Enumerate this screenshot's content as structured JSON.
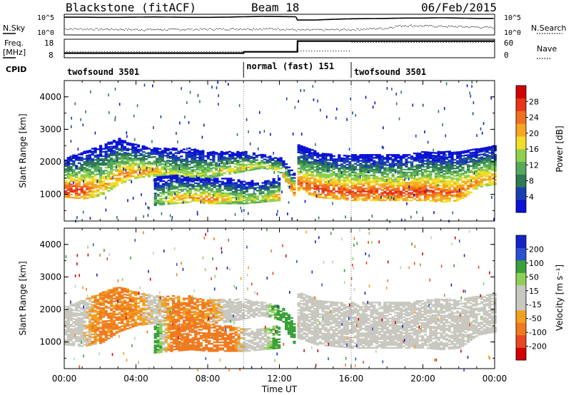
{
  "header": {
    "station": "Blackstone (fitACF)",
    "beam": "Beam 18",
    "date": "06/Feb/2015"
  },
  "strip_labels": {
    "nsky": "N.Sky",
    "nsky_hi": "10^5",
    "nsky_lo": "10^0",
    "nsearch": "N.Search",
    "nsearch_hi": "10^5",
    "nsearch_lo": "10^0",
    "freq_l1": "Freq.",
    "freq_l2": "[MHz]",
    "freq_hi": "18",
    "freq_lo": "8",
    "nave": "Nave",
    "nave_hi": "60",
    "nave_lo": "0",
    "cpid": "CPID"
  },
  "cpid_segments": [
    {
      "label": "twofsound 3501",
      "start_hour": 0,
      "end_hour": 10
    },
    {
      "label": "normal (fast) 151",
      "start_hour": 10,
      "end_hour": 16
    },
    {
      "label": "twofsound 3501",
      "start_hour": 16,
      "end_hour": 24
    }
  ],
  "colors": {
    "power_scale": [
      "#0a12d6",
      "#1a3fb0",
      "#2d7a55",
      "#55a85c",
      "#8fcf4e",
      "#f2dd2a",
      "#f5a623",
      "#f07020",
      "#e83418",
      "#d40000"
    ],
    "velocity_scale": [
      "#1424c8",
      "#2a52d0",
      "#3aa03a",
      "#8fd05a",
      "#c8c8c0",
      "#c8c8c0",
      "#f2a020",
      "#f07a20",
      "#e84820",
      "#d40000"
    ]
  },
  "chart_data": [
    {
      "type": "line",
      "panel": "N.Sky / N.Search",
      "x_range_hours": [
        0,
        24
      ],
      "y_scale": "log",
      "ylim": [
        1,
        100000
      ],
      "series": [
        {
          "name": "N.Sky",
          "x": [
            0,
            1,
            2,
            3,
            4,
            5,
            6,
            7,
            8,
            9,
            10,
            11,
            12,
            12.9,
            13,
            14,
            16,
            17,
            18,
            19,
            20,
            21,
            22,
            23,
            24
          ],
          "values": [
            20000,
            20000,
            18000,
            18000,
            20000,
            22000,
            20000,
            18000,
            18000,
            20000,
            25000,
            30000,
            28000,
            25000,
            4000,
            4000,
            8000,
            9000,
            10000,
            12000,
            12000,
            14000,
            12000,
            10000,
            10000
          ]
        },
        {
          "name": "N.Search",
          "x": [
            0,
            2,
            4,
            6,
            8,
            10,
            12,
            13,
            16,
            18,
            19,
            20,
            22,
            24
          ],
          "values": [
            30,
            25,
            20,
            20,
            25,
            30,
            30,
            15,
            20,
            40,
            200,
            150,
            100,
            60
          ]
        }
      ]
    },
    {
      "type": "line",
      "panel": "Freq / Nave",
      "x_range_hours": [
        0,
        24
      ],
      "series": [
        {
          "name": "Freq. [MHz]",
          "ylim": [
            8,
            18
          ],
          "x": [
            0,
            10,
            10.01,
            13,
            13.01,
            24
          ],
          "values": [
            10.5,
            10.5,
            11.2,
            11.2,
            17,
            17
          ]
        },
        {
          "name": "Nave",
          "ylim": [
            0,
            60
          ],
          "x": [
            0,
            13,
            13.01,
            16,
            16.01,
            24
          ],
          "values": [
            20,
            20,
            22,
            22,
            50,
            50
          ]
        }
      ]
    },
    {
      "type": "heatmap",
      "panel": "Power",
      "xlabel": "",
      "ylabel": "Slant Range [km]",
      "x_range_hours": [
        0,
        24
      ],
      "ylim": [
        180,
        4500
      ],
      "yticks": [
        1000,
        2000,
        3000,
        4000
      ],
      "colorbar": {
        "label": "Power [dB]",
        "ticks": [
          "4",
          "8",
          "12",
          "16",
          "20",
          "24",
          "28"
        ],
        "range": [
          0,
          30
        ]
      },
      "bands": [
        {
          "x": [
            0,
            1,
            2,
            3,
            4,
            5,
            6,
            7,
            8,
            9,
            10,
            11,
            12,
            12.8
          ],
          "bottom_km": [
            900,
            850,
            950,
            1300,
            1500,
            1550,
            1450,
            1400,
            1500,
            1600,
            1700,
            1800,
            1650,
            900
          ],
          "top_km": [
            2100,
            2300,
            2500,
            2700,
            2500,
            2400,
            2400,
            2400,
            2300,
            2300,
            2300,
            2200,
            2100,
            1600
          ],
          "peak_db": [
            28,
            26,
            20,
            22,
            22,
            20,
            16,
            16,
            16,
            18,
            18,
            16,
            18,
            26
          ]
        },
        {
          "x": [
            5,
            6,
            7,
            8,
            9,
            10,
            11,
            12
          ],
          "bottom_km": [
            650,
            700,
            750,
            700,
            700,
            700,
            750,
            800
          ],
          "top_km": [
            1500,
            1600,
            1500,
            1500,
            1500,
            1400,
            1400,
            1500
          ],
          "peak_db": [
            12,
            20,
            20,
            24,
            18,
            16,
            16,
            22
          ]
        },
        {
          "x": [
            13,
            14,
            15,
            16,
            17,
            18,
            19,
            20,
            21,
            22,
            23,
            24
          ],
          "bottom_km": [
            1100,
            900,
            850,
            800,
            800,
            800,
            800,
            800,
            750,
            800,
            1200,
            1300
          ],
          "top_km": [
            2500,
            2300,
            2200,
            2200,
            2200,
            2200,
            2200,
            2300,
            2300,
            2300,
            2400,
            2500
          ],
          "peak_db": [
            24,
            26,
            26,
            26,
            26,
            26,
            26,
            26,
            24,
            24,
            22,
            20
          ]
        }
      ]
    },
    {
      "type": "heatmap",
      "panel": "Velocity",
      "xlabel": "Time UT",
      "ylabel": "Slant Range [km]",
      "x_range_hours": [
        0,
        24
      ],
      "ylim": [
        180,
        4500
      ],
      "yticks": [
        1000,
        2000,
        3000,
        4000
      ],
      "xticks": [
        "00:00",
        "04:00",
        "08:00",
        "12:00",
        "16:00",
        "20:00",
        "00:00"
      ],
      "colorbar": {
        "label": "Velocity [m s⁻¹]",
        "ticks": [
          "200",
          "100",
          "50",
          "15",
          "-15",
          "-50",
          "-100",
          "-200"
        ],
        "range": [
          -250,
          250
        ]
      },
      "bands": [
        {
          "x": [
            0,
            1,
            2,
            3,
            4,
            5,
            6,
            7,
            8,
            9,
            10,
            11,
            12,
            12.8
          ],
          "bottom_km": [
            900,
            850,
            950,
            1300,
            1500,
            1550,
            1450,
            1400,
            1500,
            1600,
            1700,
            1800,
            1650,
            900
          ],
          "top_km": [
            2100,
            2300,
            2500,
            2700,
            2500,
            2400,
            2400,
            2400,
            2300,
            2300,
            2300,
            2200,
            2100,
            1600
          ],
          "mean_velocity": [
            0,
            0,
            -40,
            -40,
            -30,
            0,
            -40,
            -40,
            -30,
            0,
            0,
            0,
            50,
            60
          ]
        },
        {
          "x": [
            5,
            6,
            7,
            8,
            9,
            10,
            11,
            12
          ],
          "bottom_km": [
            650,
            700,
            750,
            700,
            700,
            700,
            750,
            800
          ],
          "top_km": [
            1500,
            1600,
            1500,
            1500,
            1500,
            1400,
            1400,
            1500
          ],
          "mean_velocity": [
            60,
            -60,
            -60,
            -60,
            -60,
            0,
            0,
            60
          ]
        },
        {
          "x": [
            13,
            14,
            15,
            16,
            17,
            18,
            19,
            20,
            21,
            22,
            23,
            24
          ],
          "bottom_km": [
            1100,
            900,
            850,
            800,
            800,
            800,
            800,
            800,
            750,
            800,
            1200,
            1300
          ],
          "top_km": [
            2500,
            2300,
            2200,
            2200,
            2200,
            2200,
            2200,
            2300,
            2300,
            2300,
            2400,
            2500
          ],
          "mean_velocity": [
            0,
            0,
            0,
            0,
            0,
            0,
            0,
            0,
            0,
            0,
            0,
            0
          ]
        }
      ]
    }
  ]
}
